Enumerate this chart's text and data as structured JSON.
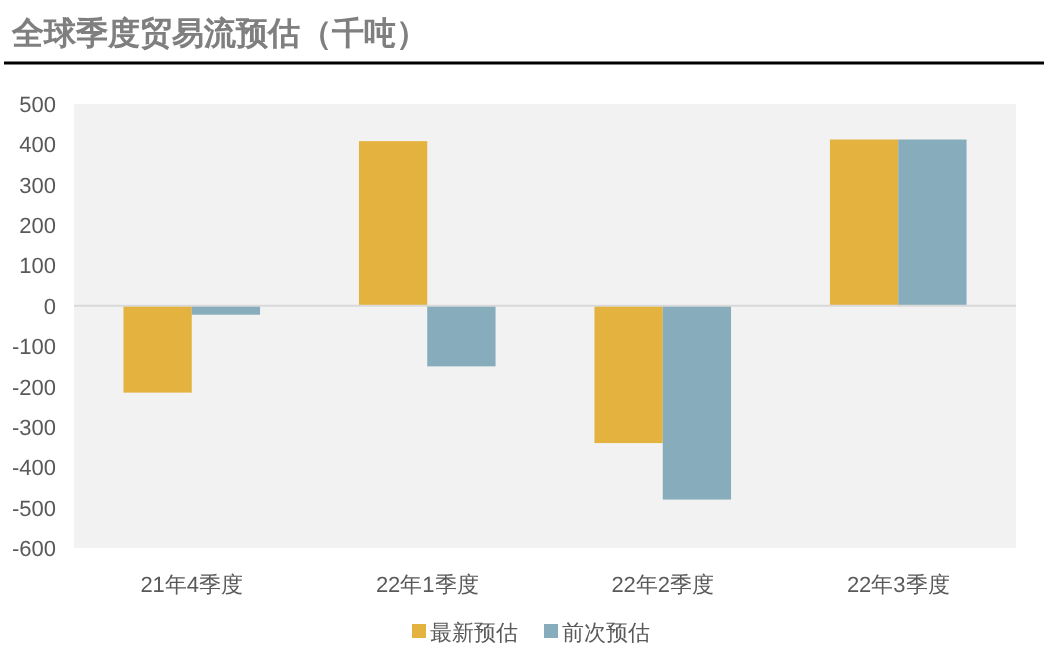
{
  "chart_data": {
    "type": "bar",
    "title": "全球季度贸易流预估（千吨）",
    "categories": [
      "21年4季度",
      "22年1季度",
      "22年2季度",
      "22年3季度"
    ],
    "series": [
      {
        "name": "最新预估",
        "color": "#e4b23f",
        "values": [
          -215,
          408,
          -340,
          412
        ]
      },
      {
        "name": "前次预估",
        "color": "#87acbb",
        "values": [
          -22,
          -150,
          -480,
          412
        ]
      }
    ],
    "ylim": [
      -600,
      500
    ],
    "yticks": [
      -600,
      -500,
      -400,
      -300,
      -200,
      -100,
      0,
      100,
      200,
      300,
      400,
      500
    ],
    "ref_lines": [
      {
        "axis": "y",
        "value": 0,
        "color": "#d9d9d9"
      }
    ],
    "legend": "bottom"
  }
}
